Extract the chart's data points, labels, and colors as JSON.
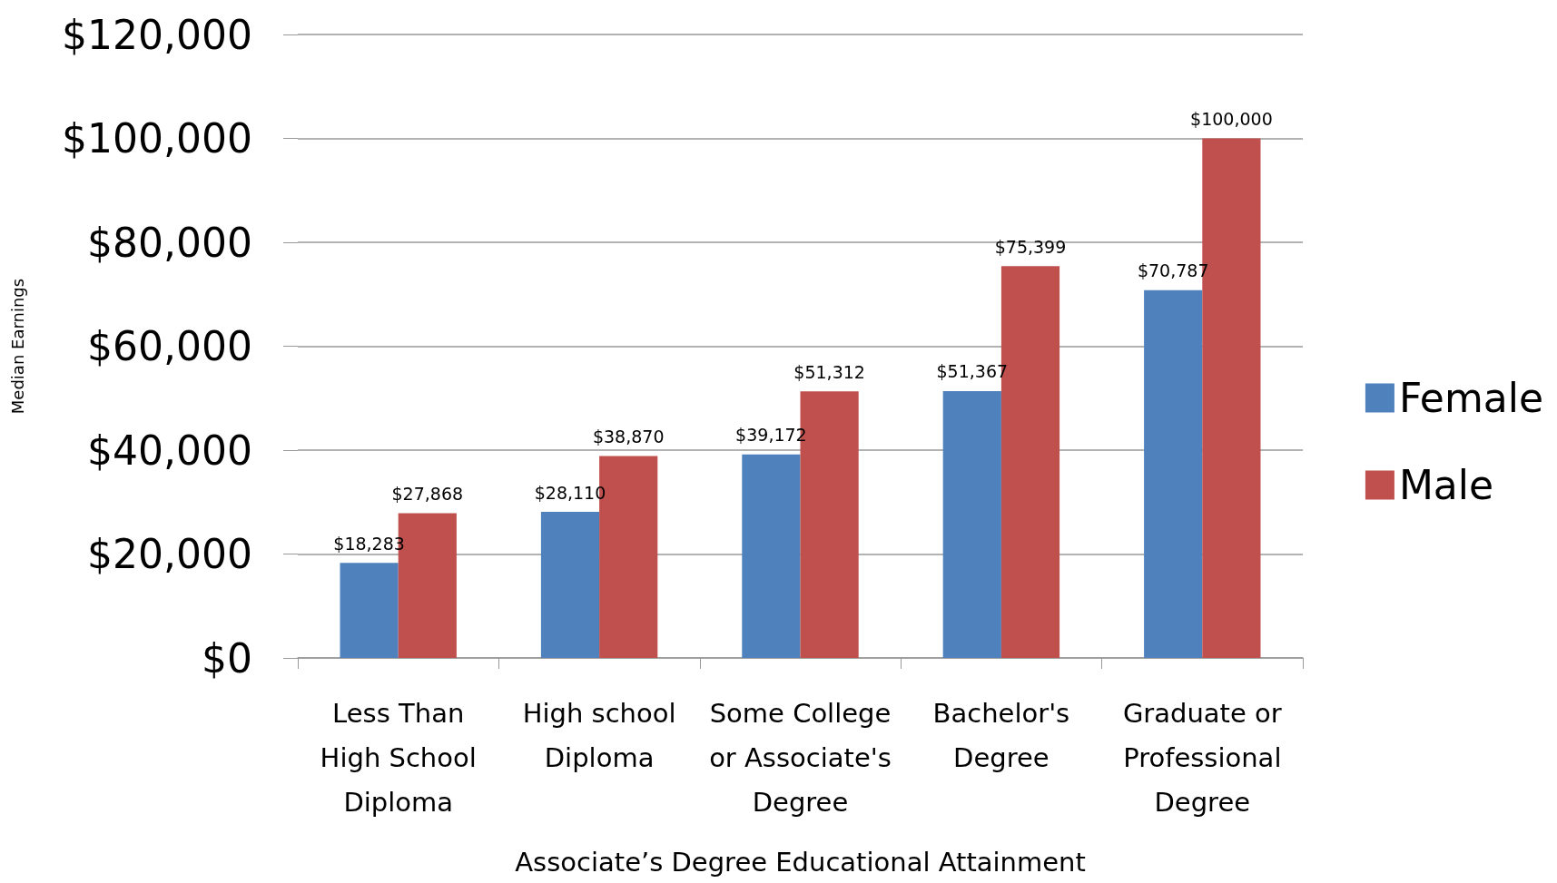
{
  "chart_data": {
    "type": "bar",
    "xlabel": "Associate’s Degree Educational Attainment",
    "ylabel": "Median Earnings",
    "categories": [
      "Less Than\nHigh School\nDiploma",
      "High school\nDiploma",
      "Some College\nor Associate's\nDegree",
      "Bachelor's\nDegree",
      "Graduate or\nProfessional\nDegree"
    ],
    "series": [
      {
        "name": "Female",
        "color": "#4f81bd",
        "values": [
          18283,
          28110,
          39172,
          51367,
          70787
        ],
        "value_labels": [
          "$18,283",
          "$28,110",
          "$39,172",
          "$51,367",
          "$70,787"
        ]
      },
      {
        "name": "Male",
        "color": "#c0504d",
        "values": [
          27868,
          38870,
          51312,
          75399,
          100000
        ],
        "value_labels": [
          "$27,868",
          "$38,870",
          "$51,312",
          "$75,399",
          "$100,000"
        ]
      }
    ],
    "ylim": [
      0,
      120000
    ],
    "yticks": [
      {
        "value": 0,
        "label": "$0"
      },
      {
        "value": 20000,
        "label": "$20,000"
      },
      {
        "value": 40000,
        "label": "$40,000"
      },
      {
        "value": 60000,
        "label": "$60,000"
      },
      {
        "value": 80000,
        "label": "$80,000"
      },
      {
        "value": 100000,
        "label": "$100,000"
      },
      {
        "value": 120000,
        "label": "$120,000"
      }
    ],
    "grid": "y",
    "legend": "right"
  }
}
